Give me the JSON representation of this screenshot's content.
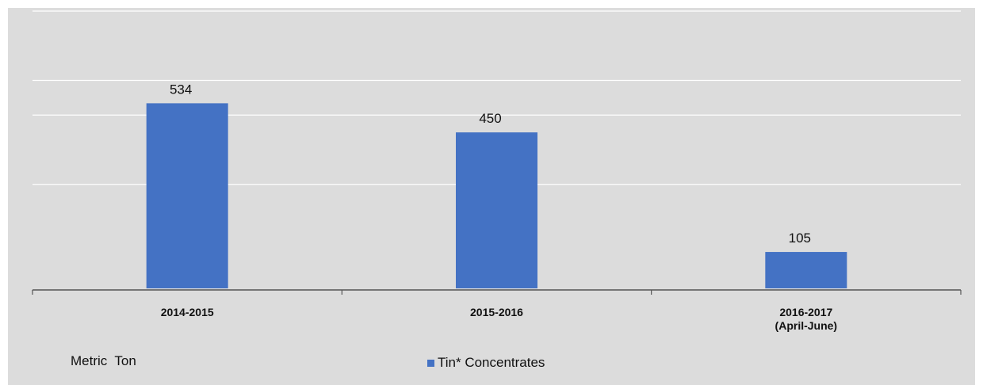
{
  "chart_data": {
    "type": "bar",
    "categories": [
      [
        "2014-2015"
      ],
      [
        "2015-2016"
      ],
      [
        "2016-2017",
        "(April-June)"
      ]
    ],
    "series": [
      {
        "name": "Tin* Concentrates",
        "values": [
          534,
          450,
          105
        ],
        "color": "#4472c4"
      }
    ],
    "data_labels": [
      "534",
      "450",
      "105"
    ],
    "unit_label": "Metric  Ton",
    "ylim": [
      0,
      800
    ],
    "grid": true,
    "legend": "bottom-center"
  },
  "colors": {
    "background": "#dcdcdc",
    "bar": "#4472c4",
    "gridline": "#ffffff",
    "axis": "#555555"
  }
}
